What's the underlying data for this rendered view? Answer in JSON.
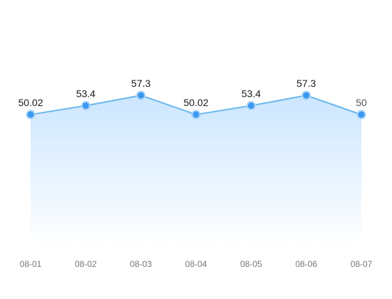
{
  "chart_data": {
    "type": "area",
    "categories": [
      "08-01",
      "08-02",
      "08-03",
      "08-04",
      "08-05",
      "08-06",
      "08-07"
    ],
    "series": [
      {
        "values": [
          50.02,
          53.4,
          57.3,
          50.02,
          53.4,
          57.3,
          50
        ],
        "labels": [
          "50.02",
          "53.4",
          "57.3",
          "50.02",
          "53.4",
          "57.3",
          "50"
        ]
      }
    ],
    "ylim": [
      0,
      80
    ],
    "grid": false,
    "colors": {
      "line": "#6ab8ec",
      "point": "#3b99f0",
      "point_halo": "#a9d3f6",
      "area_top": "#cce6ff",
      "area_bottom": "#ffffff"
    }
  }
}
